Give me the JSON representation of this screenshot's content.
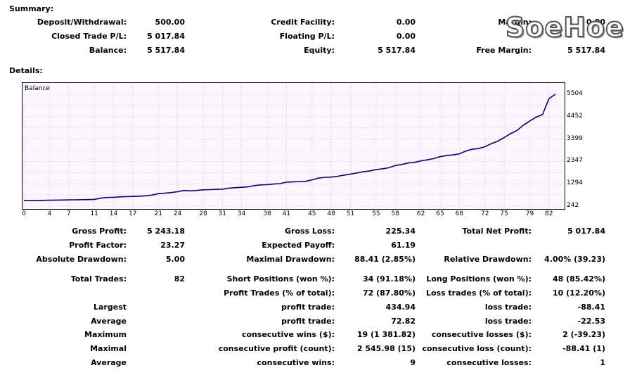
{
  "summary": {
    "heading": "Summary:",
    "rows": [
      [
        {
          "label": "Deposit/Withdrawal:",
          "value": "500.00"
        },
        {
          "label": "Credit Facility:",
          "value": "0.00"
        },
        {
          "label": "Margin:",
          "value": "0.00"
        }
      ],
      [
        {
          "label": "Closed Trade P/L:",
          "value": "5 017.84"
        },
        {
          "label": "Floating P/L:",
          "value": "0.00"
        },
        {
          "label": "",
          "value": ""
        }
      ],
      [
        {
          "label": "Balance:",
          "value": "5 517.84"
        },
        {
          "label": "Equity:",
          "value": "5 517.84"
        },
        {
          "label": "Free Margin:",
          "value": "5 517.84"
        }
      ]
    ]
  },
  "watermark": "SoeHoe",
  "details": {
    "heading": "Details:"
  },
  "chart_data": {
    "type": "line",
    "title": "Balance",
    "x_ticks": [
      "0",
      "4",
      "7",
      "11",
      "14",
      "17",
      "21",
      "24",
      "28",
      "31",
      "34",
      "38",
      "41",
      "45",
      "48",
      "51",
      "55",
      "58",
      "62",
      "65",
      "68",
      "72",
      "75",
      "79",
      "82"
    ],
    "y_ticks": [
      "5504",
      "4452",
      "3399",
      "2347",
      "1294",
      "242"
    ],
    "xlim": [
      0,
      84
    ],
    "ylim": [
      0,
      5750
    ],
    "x": [
      0,
      1,
      2,
      3,
      4,
      5,
      6,
      7,
      8,
      9,
      10,
      11,
      12,
      13,
      14,
      15,
      16,
      17,
      18,
      19,
      20,
      21,
      22,
      23,
      24,
      25,
      26,
      27,
      28,
      29,
      30,
      31,
      32,
      33,
      34,
      35,
      36,
      37,
      38,
      39,
      40,
      41,
      42,
      43,
      44,
      45,
      46,
      47,
      48,
      49,
      50,
      51,
      52,
      53,
      54,
      55,
      56,
      57,
      58,
      59,
      60,
      61,
      62,
      63,
      64,
      65,
      66,
      67,
      68,
      69,
      70,
      71,
      72,
      73,
      74,
      75,
      76,
      77,
      78,
      79,
      80,
      81,
      82,
      83
    ],
    "y": [
      500,
      505,
      510,
      515,
      520,
      525,
      530,
      535,
      540,
      545,
      550,
      560,
      620,
      650,
      660,
      680,
      690,
      700,
      710,
      730,
      760,
      830,
      850,
      880,
      920,
      980,
      960,
      980,
      1010,
      1020,
      1030,
      1040,
      1090,
      1110,
      1130,
      1150,
      1210,
      1240,
      1250,
      1280,
      1300,
      1370,
      1380,
      1400,
      1410,
      1480,
      1560,
      1600,
      1610,
      1650,
      1700,
      1750,
      1800,
      1860,
      1900,
      1960,
      2000,
      2050,
      2150,
      2200,
      2270,
      2300,
      2370,
      2420,
      2480,
      2570,
      2620,
      2650,
      2700,
      2830,
      2920,
      2950,
      3040,
      3180,
      3300,
      3470,
      3650,
      3800,
      4050,
      4250,
      4430,
      4550,
      5300,
      5504
    ],
    "series_name": "Balance"
  },
  "stats": {
    "row1": [
      {
        "label": "Gross Profit:",
        "value": "5 243.18"
      },
      {
        "label": "Gross Loss:",
        "value": "225.34"
      },
      {
        "label": "Total Net Profit:",
        "value": "5 017.84"
      }
    ],
    "row2": [
      {
        "label": "Profit Factor:",
        "value": "23.27"
      },
      {
        "label": "Expected Payoff:",
        "value": "61.19"
      },
      {
        "label": "",
        "value": ""
      }
    ],
    "row3": [
      {
        "label": "Absolute Drawdown:",
        "value": "5.00"
      },
      {
        "label": "Maximal Drawdown:",
        "value": "88.41 (2.85%)"
      },
      {
        "label": "Relative Drawdown:",
        "value": "4.00% (39.23)"
      }
    ],
    "row4": [
      {
        "label": "Total Trades:",
        "value": "82"
      },
      {
        "label": "Short Positions (won %):",
        "value": "34 (91.18%)"
      },
      {
        "label": "Long Positions (won %):",
        "value": "48 (85.42%)"
      }
    ],
    "row5": [
      {
        "label": "",
        "value": ""
      },
      {
        "label": "Profit Trades (% of total):",
        "value": "72 (87.80%)"
      },
      {
        "label": "Loss trades (% of total):",
        "value": "10 (12.20%)"
      }
    ],
    "row6": [
      {
        "label": "Largest",
        "value": ""
      },
      {
        "label": "profit trade:",
        "value": "434.94"
      },
      {
        "label": "loss trade:",
        "value": "-88.41"
      }
    ],
    "row7": [
      {
        "label": "Average",
        "value": ""
      },
      {
        "label": "profit trade:",
        "value": "72.82"
      },
      {
        "label": "loss trade:",
        "value": "-22.53"
      }
    ],
    "row8": [
      {
        "label": "Maximum",
        "value": ""
      },
      {
        "label": "consecutive wins ($):",
        "value": "19 (1 381.82)"
      },
      {
        "label": "consecutive losses ($):",
        "value": "2 (-39.23)"
      }
    ],
    "row9": [
      {
        "label": "Maximal",
        "value": ""
      },
      {
        "label": "consecutive profit (count):",
        "value": "2 545.98 (15)"
      },
      {
        "label": "consecutive loss (count):",
        "value": "-88.41 (1)"
      }
    ],
    "row10": [
      {
        "label": "Average",
        "value": ""
      },
      {
        "label": "consecutive wins:",
        "value": "9"
      },
      {
        "label": "consecutive losses:",
        "value": "1"
      }
    ]
  },
  "colors": {
    "line": "#00008b",
    "grid": "#c8a2c8",
    "plot_bg": "#fbf6ff"
  }
}
